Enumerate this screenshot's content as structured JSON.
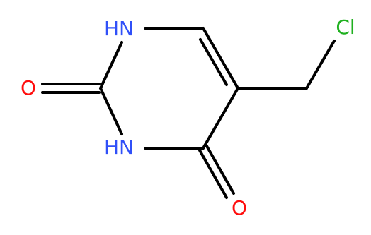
{
  "atoms": [
    "HN",
    "O",
    "HN",
    "O",
    "Cl"
  ]
}
